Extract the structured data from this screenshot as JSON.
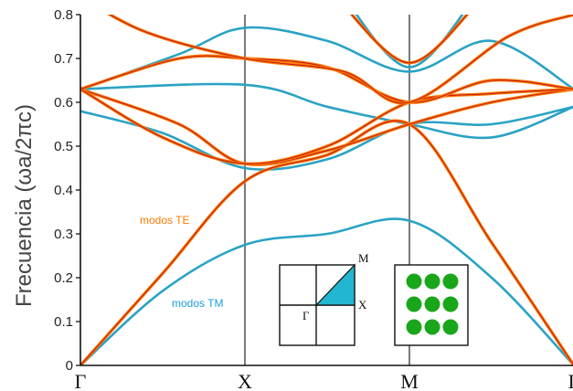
{
  "chart_data": {
    "type": "line",
    "ylabel": "Frecuencia (ωa/2πc)",
    "ylim": [
      0,
      0.8
    ],
    "yticks": [
      "0",
      "0.1",
      "0.2",
      "0.3",
      "0.4",
      "0.5",
      "0.6",
      "0.7",
      "0.8"
    ],
    "x_points": [
      "Γ",
      "X",
      "M",
      "Γ"
    ],
    "grid": "vertical lines at X and M",
    "colors": {
      "TE": "#ff7a00",
      "TE_center": "#c0201c",
      "TM": "#2aa3c4"
    },
    "annotations": {
      "te_label": "modos TE",
      "tm_label": "modos TM"
    },
    "inset_brillouin_zone": {
      "labels": [
        "M",
        "X",
        "Γ"
      ],
      "fill_color": "#23b6d0"
    },
    "inset_lattice": {
      "rows": 3,
      "cols": 3,
      "rod_color": "#1aa61a"
    },
    "series": [
      {
        "mode": "TE",
        "points": [
          [
            0,
            0
          ],
          [
            0.5,
            0.21
          ],
          [
            1,
            0.42
          ],
          [
            1.5,
            0.48
          ],
          [
            2,
            0.55
          ],
          [
            2.5,
            0.28
          ],
          [
            3,
            0
          ]
        ]
      },
      {
        "mode": "TE",
        "points": [
          [
            0,
            0.63
          ],
          [
            0.6,
            0.55
          ],
          [
            1,
            0.46
          ],
          [
            1.5,
            0.49
          ],
          [
            2,
            0.55
          ],
          [
            2.5,
            0.6
          ],
          [
            3,
            0.63
          ]
        ]
      },
      {
        "mode": "TE",
        "points": [
          [
            0,
            0.63
          ],
          [
            0.5,
            0.52
          ],
          [
            1,
            0.46
          ],
          [
            1.5,
            0.5
          ],
          [
            2,
            0.6
          ],
          [
            2.5,
            0.62
          ],
          [
            3,
            0.63
          ]
        ]
      },
      {
        "mode": "TE",
        "points": [
          [
            0,
            0.63
          ],
          [
            0.6,
            0.7
          ],
          [
            1,
            0.7
          ],
          [
            1.5,
            0.68
          ],
          [
            2,
            0.6
          ],
          [
            2.5,
            0.65
          ],
          [
            3,
            0.63
          ]
        ]
      },
      {
        "mode": "TE",
        "points": [
          [
            0,
            0.84
          ],
          [
            0.4,
            0.76
          ],
          [
            1,
            0.7
          ],
          [
            1.6,
            0.67
          ],
          [
            2,
            0.6
          ],
          [
            2.6,
            0.75
          ],
          [
            3,
            0.8
          ]
        ]
      },
      {
        "mode": "TE",
        "points": [
          [
            1.6,
            0.82
          ],
          [
            2,
            0.69
          ],
          [
            2.4,
            0.82
          ]
        ]
      },
      {
        "mode": "TM",
        "points": [
          [
            0,
            0
          ],
          [
            0.5,
            0.17
          ],
          [
            1,
            0.275
          ],
          [
            1.5,
            0.3
          ],
          [
            2,
            0.33
          ],
          [
            2.5,
            0.2
          ],
          [
            3,
            0
          ]
        ]
      },
      {
        "mode": "TM",
        "points": [
          [
            0,
            0.58
          ],
          [
            0.5,
            0.53
          ],
          [
            1,
            0.45
          ],
          [
            1.5,
            0.47
          ],
          [
            2,
            0.55
          ],
          [
            2.5,
            0.55
          ],
          [
            3,
            0.59
          ]
        ]
      },
      {
        "mode": "TM",
        "points": [
          [
            0,
            0.63
          ],
          [
            1,
            0.64
          ],
          [
            1.5,
            0.59
          ],
          [
            2,
            0.55
          ],
          [
            2.5,
            0.52
          ],
          [
            3,
            0.59
          ]
        ]
      },
      {
        "mode": "TM",
        "points": [
          [
            0,
            0.63
          ],
          [
            0.6,
            0.71
          ],
          [
            1,
            0.77
          ],
          [
            1.5,
            0.74
          ],
          [
            2,
            0.67
          ],
          [
            2.5,
            0.74
          ],
          [
            3,
            0.63
          ]
        ]
      },
      {
        "mode": "TM",
        "points": [
          [
            1.6,
            0.84
          ],
          [
            2,
            0.68
          ],
          [
            2.4,
            0.84
          ]
        ]
      }
    ]
  }
}
